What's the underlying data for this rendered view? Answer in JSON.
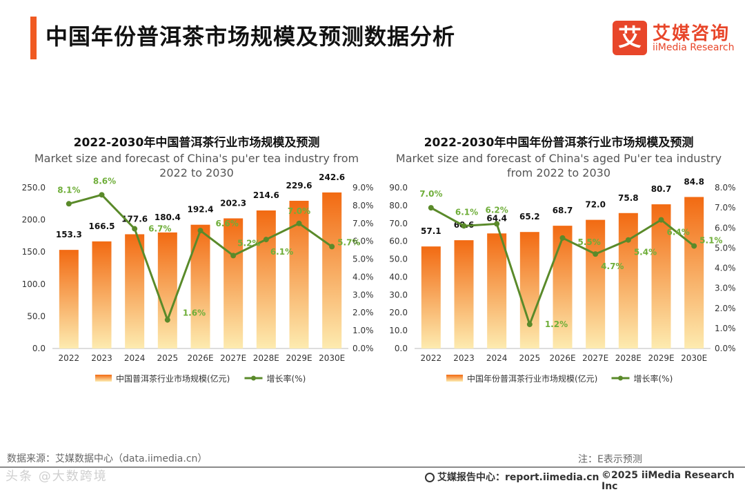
{
  "header": {
    "title": "中国年份普洱茶市场规模及预测数据分析",
    "logo_box_char": "艾",
    "logo_cn": "艾媒咨询",
    "logo_en": "iiMedia Research"
  },
  "colors": {
    "accent": "#f05a22",
    "bar_top": "#f26a12",
    "bar_bottom": "#fdebb0",
    "line": "#5a8a2a",
    "line_label": "#6fae3a"
  },
  "chart_data": [
    {
      "type": "bar+line",
      "title": "2022-2030年中国普洱茶行业市场规模及预测",
      "subtitle_line1": "Market size and forecast of China's pu'er tea industry from",
      "subtitle_line2": "2022 to 2030",
      "categories": [
        "2022",
        "2023",
        "2024",
        "2025",
        "2026E",
        "2027E",
        "2028E",
        "2029E",
        "2030E"
      ],
      "series": [
        {
          "name": "中国普洱茶行业市场规模(亿元)",
          "type": "bar",
          "values": [
            153.3,
            166.5,
            177.6,
            180.4,
            192.4,
            202.3,
            214.6,
            229.6,
            242.6
          ],
          "labels": [
            "153.3",
            "166.5",
            "177.6",
            "180.4",
            "192.4",
            "202.3",
            "214.6",
            "229.6",
            "242.6"
          ]
        },
        {
          "name": "增长率(%)",
          "type": "line",
          "values": [
            8.1,
            8.6,
            6.7,
            1.6,
            6.6,
            5.2,
            6.1,
            7.0,
            5.7
          ],
          "labels": [
            "8.1%",
            "8.6%",
            "6.7%",
            "1.6%",
            "6.6%",
            "5.2%",
            "6.1%",
            "7.0%",
            "5.7%"
          ]
        }
      ],
      "ylim": [
        0,
        250
      ],
      "yticks": [
        "0.0",
        "50.0",
        "100.0",
        "150.0",
        "200.0",
        "250.0"
      ],
      "y2lim": [
        0,
        9
      ],
      "y2ticks": [
        "0.0%",
        "1.0%",
        "2.0%",
        "3.0%",
        "4.0%",
        "5.0%",
        "6.0%",
        "7.0%",
        "8.0%",
        "9.0%"
      ]
    },
    {
      "type": "bar+line",
      "title": "2022-2030年中国年份普洱茶行业市场规模及预测",
      "subtitle_line1": "Market size and forecast of China's aged Pu'er tea industry",
      "subtitle_line2": "from 2022 to 2030",
      "categories": [
        "2022",
        "2023",
        "2024",
        "2025",
        "2026E",
        "2027E",
        "2028E",
        "2029E",
        "2030E"
      ],
      "series": [
        {
          "name": "中国年份普洱茶行业市场规模(亿元)",
          "type": "bar",
          "values": [
            57.1,
            60.6,
            64.4,
            65.2,
            68.7,
            72.0,
            75.8,
            80.7,
            84.8
          ],
          "labels": [
            "57.1",
            "60.6",
            "64.4",
            "65.2",
            "68.7",
            "72.0",
            "75.8",
            "80.7",
            "84.8"
          ]
        },
        {
          "name": "增长率(%)",
          "type": "line",
          "values": [
            7.0,
            6.1,
            6.2,
            1.2,
            5.5,
            4.7,
            5.4,
            6.4,
            5.1
          ],
          "labels": [
            "7.0%",
            "6.1%",
            "6.2%",
            "1.2%",
            "5.5%",
            "4.7%",
            "5.4%",
            "6.4%",
            "5.1%"
          ]
        }
      ],
      "ylim": [
        0,
        90
      ],
      "yticks": [
        "0.0",
        "10.0",
        "20.0",
        "30.0",
        "40.0",
        "50.0",
        "60.0",
        "70.0",
        "80.0",
        "90.0"
      ],
      "y2lim": [
        0,
        8
      ],
      "y2ticks": [
        "0.0%",
        "1.0%",
        "2.0%",
        "3.0%",
        "4.0%",
        "5.0%",
        "6.0%",
        "7.0%",
        "8.0%"
      ]
    }
  ],
  "footer": {
    "source": "数据来源：艾媒数据中心（data.iimedia.cn）",
    "note": "注：E表示预测",
    "watermark": "头条 @大数跨境",
    "site": "艾媒报告中心：report.iimedia.cn",
    "copyright": "©2025  iiMedia Research  Inc"
  }
}
